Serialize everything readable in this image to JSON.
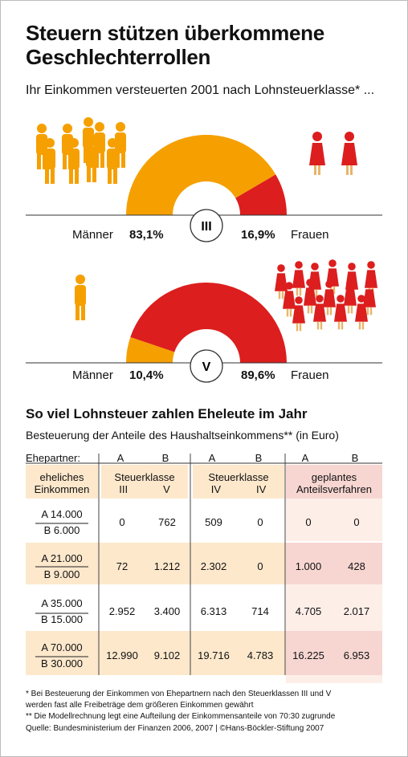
{
  "title_line1": "Steuern stützen überkommene",
  "title_line2": "Geschlechterrollen",
  "subtitle": "Ihr Einkommen versteuerten 2001 nach Lohnsteuerklasse* ...",
  "colors": {
    "men": "#f5a000",
    "women": "#dc1e1e",
    "table_tint": "#fde8cc",
    "table_tint_pink": "#f7d6d2"
  },
  "chart_data": [
    {
      "type": "pie",
      "class_label": "III",
      "slices": [
        {
          "name": "Männer",
          "value": 83.1,
          "label": "83,1%"
        },
        {
          "name": "Frauen",
          "value": 16.9,
          "label": "16,9%"
        }
      ]
    },
    {
      "type": "pie",
      "class_label": "V",
      "slices": [
        {
          "name": "Männer",
          "value": 10.4,
          "label": "10,4%"
        },
        {
          "name": "Frauen",
          "value": 89.6,
          "label": "89,6%"
        }
      ]
    },
    {
      "type": "table",
      "title": "So viel Lohnsteuer zahlen Eheleute im Jahr",
      "subtitle": "Besteuerung der Anteile des Haushaltseinkommens** (in Euro)",
      "partner_label": "Ehepartner:",
      "partner_cols": [
        "A",
        "B",
        "A",
        "B",
        "A",
        "B"
      ],
      "income_header": [
        "eheliches",
        "Einkommen"
      ],
      "group_headers": [
        {
          "line1": "Steuerklasse",
          "line2a": "III",
          "line2b": "V"
        },
        {
          "line1": "Steuerklasse",
          "line2a": "IV",
          "line2b": "IV"
        },
        {
          "line1": "geplantes",
          "line2": "Anteilsverfahren"
        }
      ],
      "rows": [
        {
          "a": "A 14.000",
          "b": "B   6.000",
          "values": [
            "0",
            "762",
            "509",
            "0",
            "0",
            "0"
          ]
        },
        {
          "a": "A 21.000",
          "b": "B   9.000",
          "values": [
            "72",
            "1.212",
            "2.302",
            "0",
            "1.000",
            "428"
          ]
        },
        {
          "a": "A 35.000",
          "b": "B 15.000",
          "values": [
            "2.952",
            "3.400",
            "6.313",
            "714",
            "4.705",
            "2.017"
          ]
        },
        {
          "a": "A 70.000",
          "b": "B 30.000",
          "values": [
            "12.990",
            "9.102",
            "19.716",
            "4.783",
            "16.225",
            "6.953"
          ]
        }
      ]
    }
  ],
  "footnotes": {
    "f1a": "*  Bei Besteuerung der Einkommen von Ehepartnern nach den Steuerklassen III und V",
    "f1b": "    werden fast alle Freibeträge dem größeren Einkommen gewährt",
    "f2": "** Die Modellrechnung legt eine Aufteilung der Einkommensanteile von 70:30 zugrunde",
    "source": "Quelle: Bundesministerium der Finanzen 2006, 2007 | ©Hans-Böckler-Stiftung 2007"
  }
}
